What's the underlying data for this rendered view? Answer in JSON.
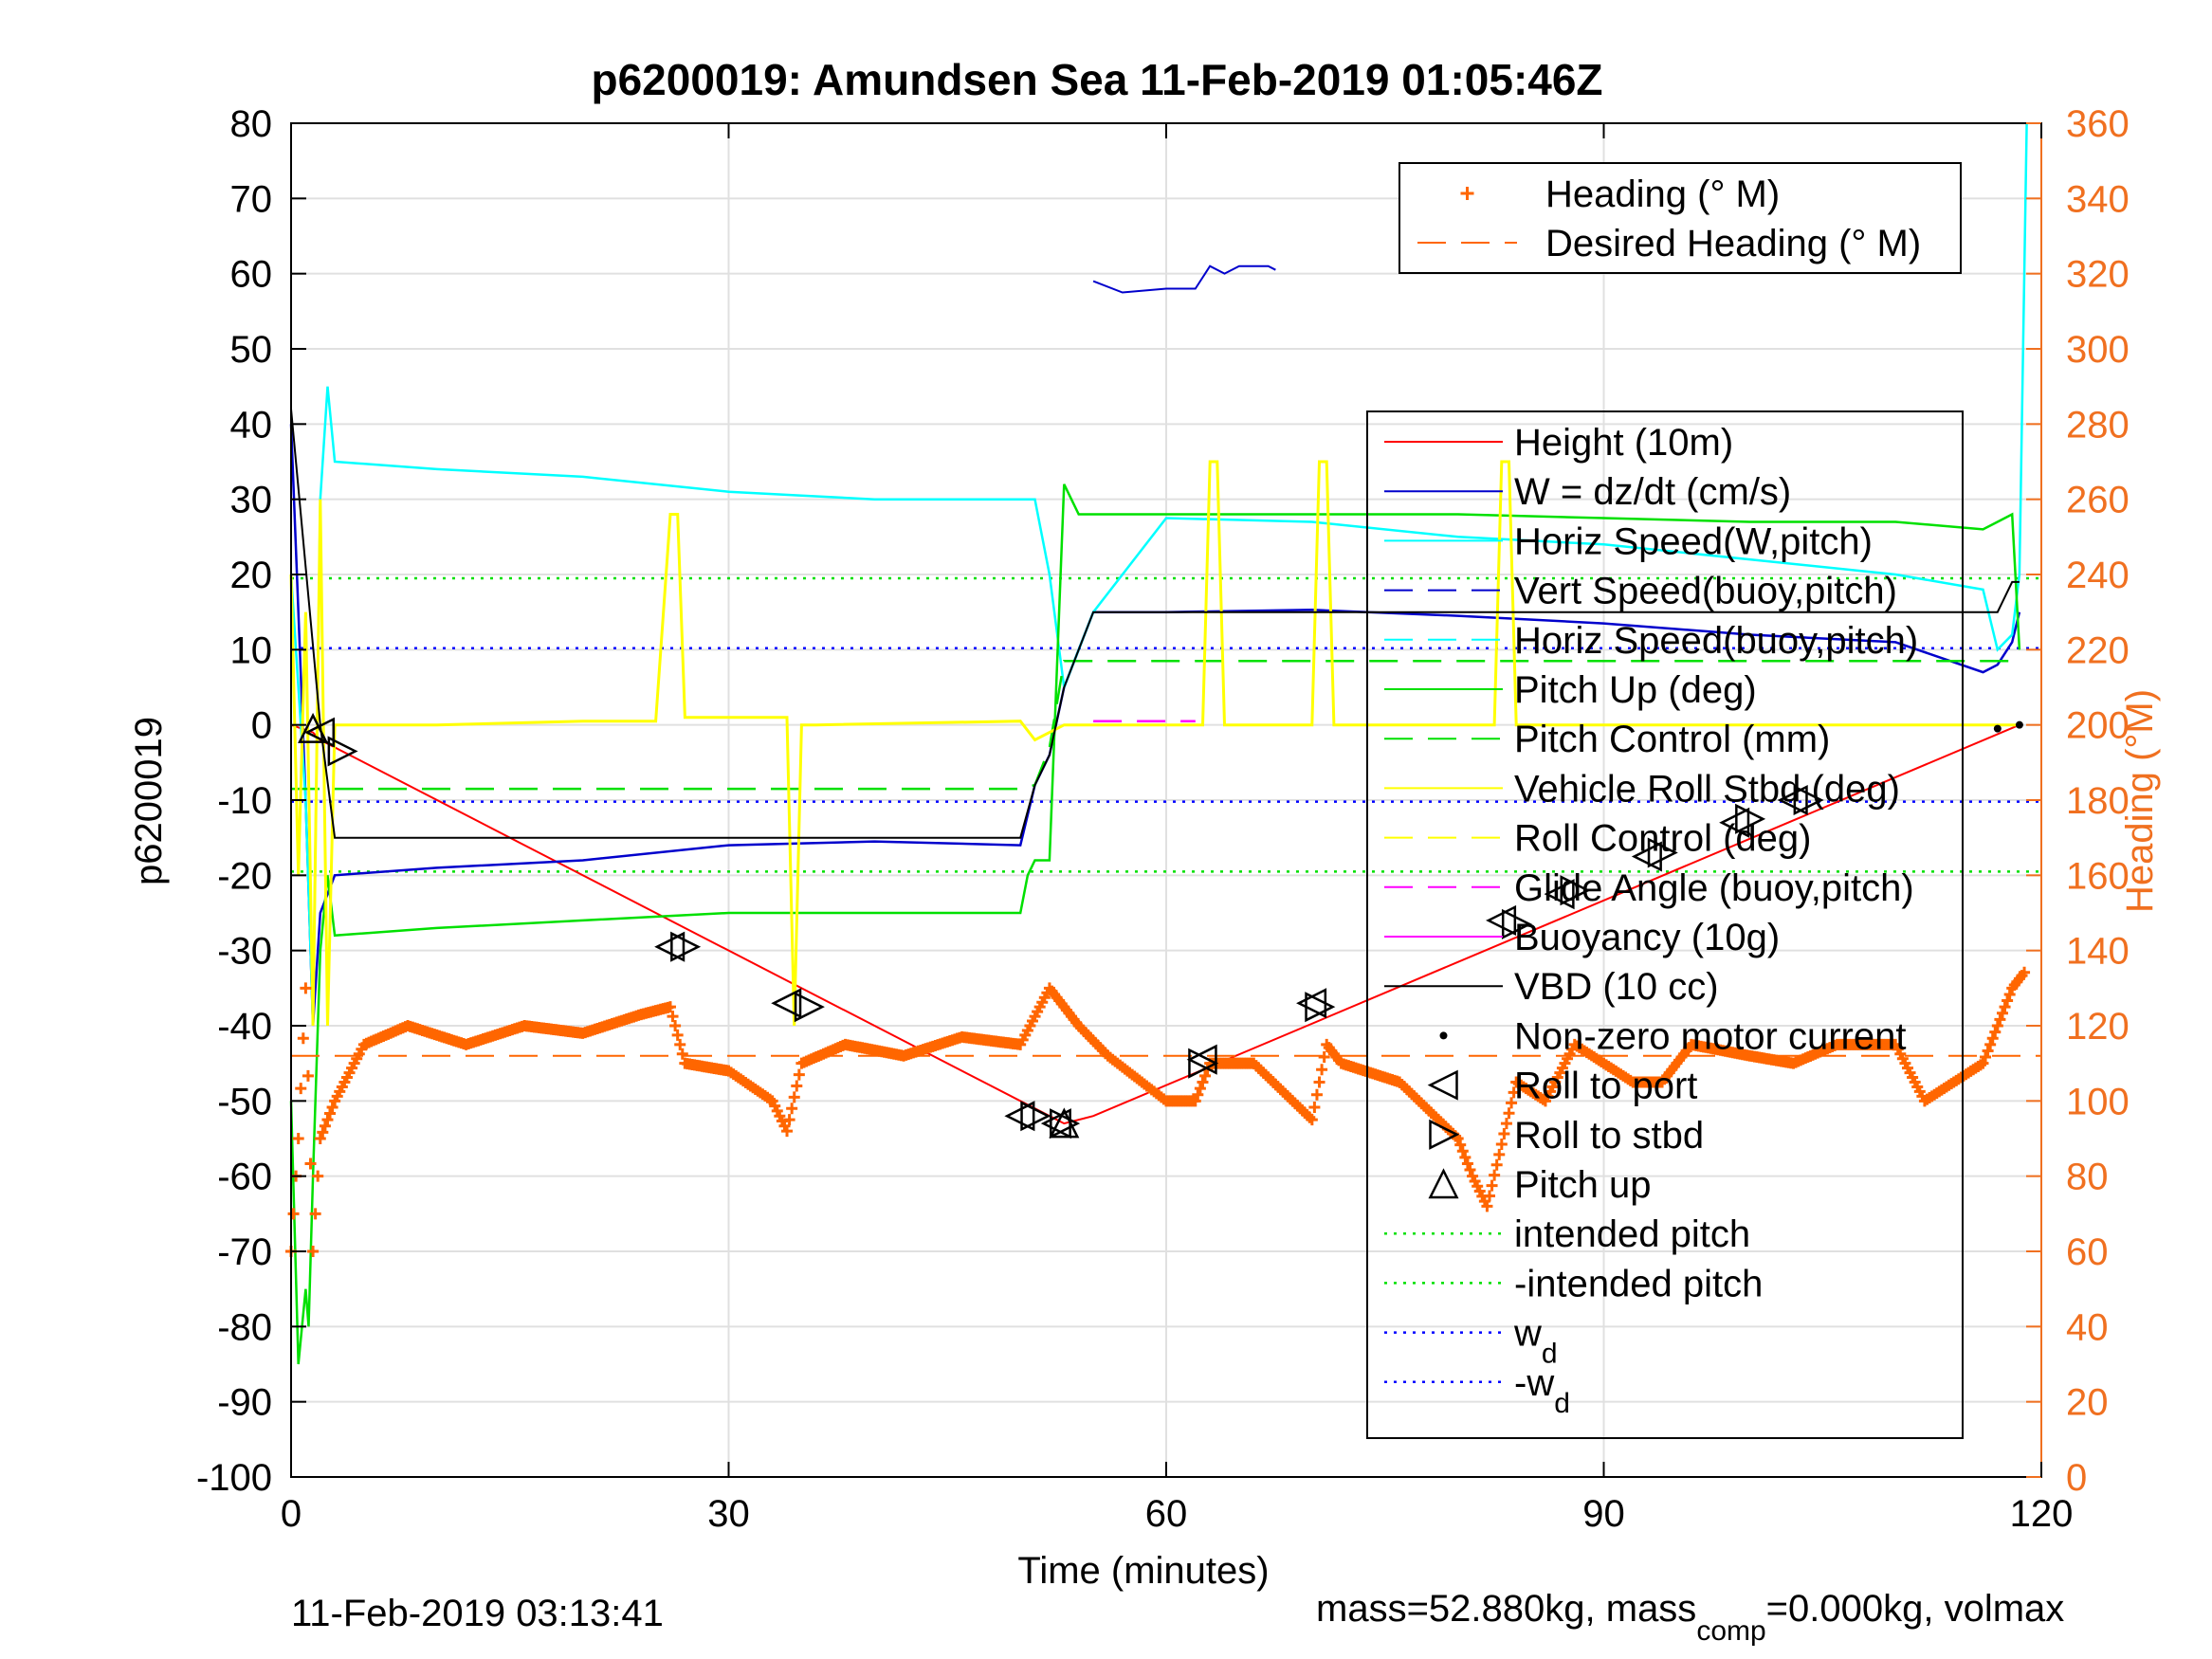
{
  "chart_data": {
    "type": "line",
    "title": "p6200019: Amundsen Sea 11-Feb-2019 01:05:46Z",
    "xlabel": "Time (minutes)",
    "ylabel_left": "p6200019",
    "ylabel_right": "Heading (°M)",
    "xlim": [
      0,
      120
    ],
    "ylim_left": [
      -100,
      80
    ],
    "ylim_right": [
      0,
      360
    ],
    "xticks": [
      "0",
      "30",
      "60",
      "90",
      "120"
    ],
    "yticks_left": [
      "80",
      "70",
      "60",
      "50",
      "40",
      "30",
      "20",
      "10",
      "0",
      "-10",
      "-20",
      "-30",
      "-40",
      "-50",
      "-60",
      "-70",
      "-80",
      "-90",
      "-100"
    ],
    "yticks_right": [
      "360",
      "340",
      "320",
      "300",
      "280",
      "260",
      "240",
      "220",
      "200",
      "180",
      "160",
      "140",
      "120",
      "100",
      "80",
      "60",
      "40",
      "20",
      "0"
    ],
    "grid": true,
    "colors": {
      "height": "#ff0000",
      "w": "#0000cc",
      "horiz_speed": "#00ffff",
      "pitch": "#00e000",
      "roll": "#ffff00",
      "vbd": "#000000",
      "heading": "#ff6600",
      "glide": "#ff00ff",
      "wd": "#0000ff",
      "right_axis": "#f07020"
    },
    "legend_top": [
      {
        "label": "Heading (° M)",
        "style": "plus",
        "color": "#ff6600"
      },
      {
        "label": "Desired Heading (° M)",
        "style": "dash",
        "color": "#ff6600"
      }
    ],
    "legend_main": [
      {
        "label": "Height (10m)",
        "style": "solid",
        "color": "#ff0000"
      },
      {
        "label": "W = dz/dt (cm/s)",
        "style": "solid",
        "color": "#0000cc"
      },
      {
        "label": "Horiz Speed(W,pitch)",
        "style": "solid",
        "color": "#00ffff"
      },
      {
        "label": "Vert Speed(buoy,pitch)",
        "style": "dash",
        "color": "#0000cc"
      },
      {
        "label": "Horiz Speed(buoy,pitch)",
        "style": "dash",
        "color": "#00ffff"
      },
      {
        "label": "Pitch Up (deg)",
        "style": "solid",
        "color": "#00e000"
      },
      {
        "label": "Pitch Control (mm)",
        "style": "dash",
        "color": "#00e000"
      },
      {
        "label": "Vehicle Roll Stbd (deg)",
        "style": "solid",
        "color": "#ffff00"
      },
      {
        "label": "Roll Control (deg)",
        "style": "dash",
        "color": "#ffff00"
      },
      {
        "label": "Glide Angle (buoy,pitch)",
        "style": "dash",
        "color": "#ff00ff"
      },
      {
        "label": "Buoyancy (10g)",
        "style": "solid",
        "color": "#ff00ff"
      },
      {
        "label": "VBD (10 cc)",
        "style": "solid",
        "color": "#000000"
      },
      {
        "label": "Non-zero motor current",
        "style": "dot",
        "color": "#000000"
      },
      {
        "label": "Roll to port",
        "style": "tri-left",
        "color": "#000000"
      },
      {
        "label": "Roll to stbd",
        "style": "tri-right",
        "color": "#000000"
      },
      {
        "label": "Pitch up",
        "style": "tri-up",
        "color": "#000000"
      },
      {
        "label": "intended pitch",
        "style": "dotted",
        "color": "#00e000"
      },
      {
        "label": "-intended pitch",
        "style": "dotted",
        "color": "#00e000"
      },
      {
        "label": "w",
        "sub": "d",
        "style": "dotted",
        "color": "#0000ff"
      },
      {
        "label": "-w",
        "sub": "d",
        "style": "dotted",
        "color": "#0000ff"
      }
    ],
    "series": [
      {
        "name": "Height (10m)",
        "axis": "left",
        "x": [
          0,
          1.5,
          2,
          52,
          53,
          55,
          118.5
        ],
        "y": [
          0,
          -1,
          -2,
          -52,
          -53,
          -52,
          0
        ]
      },
      {
        "name": "W = dz/dt (cm/s)",
        "axis": "left",
        "x": [
          0,
          1,
          1.5,
          2,
          3,
          10,
          20,
          30,
          40,
          50,
          51,
          52,
          53,
          55,
          60,
          70,
          80,
          90,
          100,
          110,
          116,
          117,
          118,
          118.5
        ],
        "y": [
          40,
          -10,
          -40,
          -25,
          -20,
          -19,
          -18,
          -16,
          -15.5,
          -16,
          -8,
          -4,
          5,
          15,
          15,
          15.3,
          14.5,
          13.5,
          12,
          11,
          7,
          8,
          11,
          15
        ]
      },
      {
        "name": "Horiz Speed(W,pitch)",
        "axis": "left",
        "x": [
          0,
          1,
          1.5,
          2,
          2.5,
          3,
          10,
          20,
          30,
          35,
          40,
          50,
          51,
          52,
          53,
          55,
          60,
          70,
          80,
          90,
          100,
          110,
          116,
          117,
          118,
          118.5,
          119
        ],
        "y": [
          20,
          -10,
          -40,
          30,
          45,
          35,
          34,
          33,
          31,
          30.5,
          30,
          30,
          30,
          20,
          5,
          15,
          27.5,
          27,
          25,
          24,
          22,
          20,
          18,
          10,
          12,
          20,
          80
        ]
      },
      {
        "name": "Pitch Up (deg)",
        "axis": "left",
        "x": [
          0,
          0.5,
          1,
          1.2,
          1.5,
          2,
          2.5,
          3,
          10,
          20,
          30,
          40,
          50,
          50.5,
          51,
          52,
          53,
          54,
          60,
          70,
          80,
          90,
          100,
          110,
          116,
          117,
          118,
          118.5
        ],
        "y": [
          -50,
          -85,
          -75,
          -80,
          -60,
          -30,
          -20,
          -28,
          -27,
          -26,
          -25,
          -25,
          -25,
          -20,
          -18,
          -18,
          32,
          28,
          28,
          28,
          28,
          27.5,
          27,
          27,
          26,
          27,
          28,
          10
        ]
      },
      {
        "name": "Pitch Control (mm)",
        "axis": "left",
        "x": [
          0,
          50,
          51,
          52,
          53,
          118.5
        ],
        "y": [
          -8.5,
          -8.5,
          -8,
          -3,
          8.5,
          8.5
        ]
      },
      {
        "name": "Vehicle Roll Stbd (deg)",
        "axis": "left",
        "x": [
          0,
          0.5,
          1,
          1.5,
          2,
          2.5,
          3,
          10,
          20,
          25,
          26,
          26.5,
          27,
          30,
          34,
          34.5,
          35,
          36,
          50,
          51,
          52,
          53,
          60,
          62.5,
          63,
          63.5,
          64,
          70,
          70.5,
          71,
          71.5,
          72,
          80,
          82.5,
          83,
          83.5,
          84,
          100,
          118.5
        ],
        "y": [
          20,
          -20,
          15,
          -40,
          30,
          -40,
          0,
          0,
          0.5,
          0.5,
          28,
          28,
          1,
          1,
          1,
          -40,
          0,
          0,
          0.5,
          -2,
          -1,
          0,
          0,
          0,
          35,
          35,
          0,
          0,
          35,
          35,
          0,
          0,
          0,
          0,
          35,
          35,
          0,
          0,
          0
        ]
      },
      {
        "name": "VBD (10 cc)",
        "axis": "left",
        "x": [
          0,
          2,
          3,
          50,
          51,
          52,
          53,
          55,
          116,
          117,
          118,
          118.5
        ],
        "y": [
          42,
          0,
          -15,
          -15,
          -8,
          -4,
          5,
          15,
          15,
          15,
          19,
          19
        ]
      },
      {
        "name": "Glide Angle (buoy,pitch)",
        "axis": "left",
        "x": [
          55,
          62
        ],
        "y": [
          0.5,
          0.5
        ]
      },
      {
        "name": "Heading (° M)",
        "axis": "right",
        "x": [
          0,
          0.5,
          1,
          1.5,
          2,
          3,
          5,
          8,
          12,
          16,
          20,
          24,
          26,
          27,
          30,
          33,
          34,
          35,
          38,
          42,
          46,
          50,
          52,
          54,
          56,
          60,
          62,
          63,
          66,
          70,
          71,
          72,
          76,
          80,
          81,
          82,
          84,
          86,
          88,
          90,
          92,
          94,
          96,
          100,
          103,
          106,
          110,
          112,
          114,
          116,
          118,
          119
        ],
        "y": [
          60,
          90,
          130,
          60,
          90,
          100,
          115,
          120,
          115,
          120,
          118,
          123,
          125,
          110,
          108,
          100,
          92,
          110,
          115,
          112,
          117,
          115,
          130,
          120,
          112,
          100,
          100,
          110,
          110,
          95,
          115,
          110,
          105,
          90,
          80,
          72,
          105,
          100,
          115,
          110,
          105,
          105,
          115,
          112,
          110,
          115,
          115,
          100,
          105,
          110,
          130,
          135
        ]
      },
      {
        "name": "Desired Heading (° M)",
        "axis": "right",
        "x": [
          0,
          120
        ],
        "y": [
          112,
          112
        ]
      }
    ],
    "reference_lines": [
      {
        "name": "intended pitch",
        "y": 19.5,
        "color": "#00e000"
      },
      {
        "name": "-intended pitch",
        "y": -19.5,
        "color": "#00e000"
      },
      {
        "name": "w_d",
        "y": 10.2,
        "color": "#0000ff"
      },
      {
        "name": "-w_d",
        "y": -10.2,
        "color": "#0000ff"
      }
    ],
    "markers": {
      "roll_to_port": {
        "x": [
          2,
          26,
          34,
          50,
          52.5,
          62.5,
          70,
          83,
          87,
          93,
          99,
          103
        ],
        "y": [
          -1,
          -29.5,
          -37,
          -52,
          -53,
          -44.5,
          -37,
          -26,
          -22.5,
          -17.5,
          -13,
          -10
        ]
      },
      "roll_to_stbd": {
        "x": [
          3.5,
          27,
          35.5,
          51,
          53,
          62.5,
          70.5,
          84,
          88,
          94,
          100,
          104
        ],
        "y": [
          -3.5,
          -29.5,
          -37.5,
          -52,
          -53,
          -45,
          -37.5,
          -26.5,
          -22,
          -17,
          -12.5,
          -10
        ]
      },
      "pitch_up": {
        "x": [
          1.5,
          53
        ],
        "y": [
          -0.5,
          -53
        ]
      },
      "motor_current": {
        "x": [
          117,
          118.5
        ],
        "y": [
          -0.5,
          0
        ]
      },
      "blue_segment": {
        "x": [
          55,
          57,
          60,
          62,
          63,
          64,
          65,
          66,
          67,
          67.5
        ],
        "y": [
          59,
          57.5,
          58,
          58,
          61,
          60,
          61,
          61,
          61,
          60.5
        ]
      }
    },
    "footer_left": "11-Feb-2019 03:13:41",
    "footer_right": "mass=52.880kg, mass",
    "footer_sub": "comp",
    "footer_right2": "=0.000kg, volmax"
  }
}
